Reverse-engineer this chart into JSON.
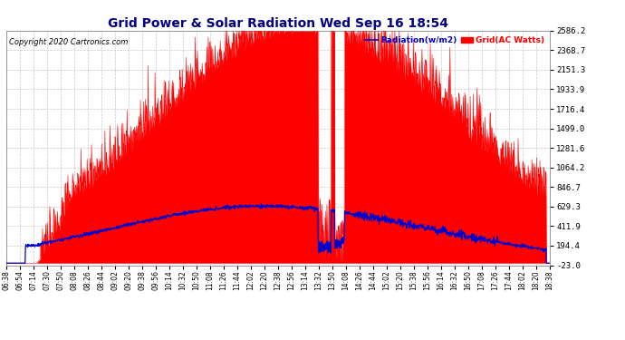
{
  "title": "Grid Power & Solar Radiation Wed Sep 16 18:54",
  "copyright": "Copyright 2020 Cartronics.com",
  "legend_radiation": "Radiation(w/m2)",
  "legend_grid": "Grid(AC Watts)",
  "ylabel_right_ticks": [
    -23.0,
    194.4,
    411.9,
    629.3,
    846.7,
    1064.2,
    1281.6,
    1499.0,
    1716.4,
    1933.9,
    2151.3,
    2368.7,
    2586.2
  ],
  "ymin": -23.0,
  "ymax": 2586.2,
  "x_tick_labels": [
    "06:38",
    "06:54",
    "07:14",
    "07:30",
    "07:50",
    "08:08",
    "08:26",
    "08:44",
    "09:02",
    "09:20",
    "09:38",
    "09:56",
    "10:14",
    "10:32",
    "10:50",
    "11:08",
    "11:26",
    "11:44",
    "12:02",
    "12:20",
    "12:38",
    "12:56",
    "13:14",
    "13:32",
    "13:50",
    "14:08",
    "14:26",
    "14:44",
    "15:02",
    "15:20",
    "15:38",
    "15:56",
    "16:14",
    "16:32",
    "16:50",
    "17:08",
    "17:26",
    "17:44",
    "18:02",
    "18:20",
    "18:38"
  ],
  "background_color": "#ffffff",
  "grid_color": "#b0b0b0",
  "fill_color": "#ff0000",
  "line_color_radiation": "#0000cc",
  "title_color": "#000080",
  "copyright_color": "#000000"
}
